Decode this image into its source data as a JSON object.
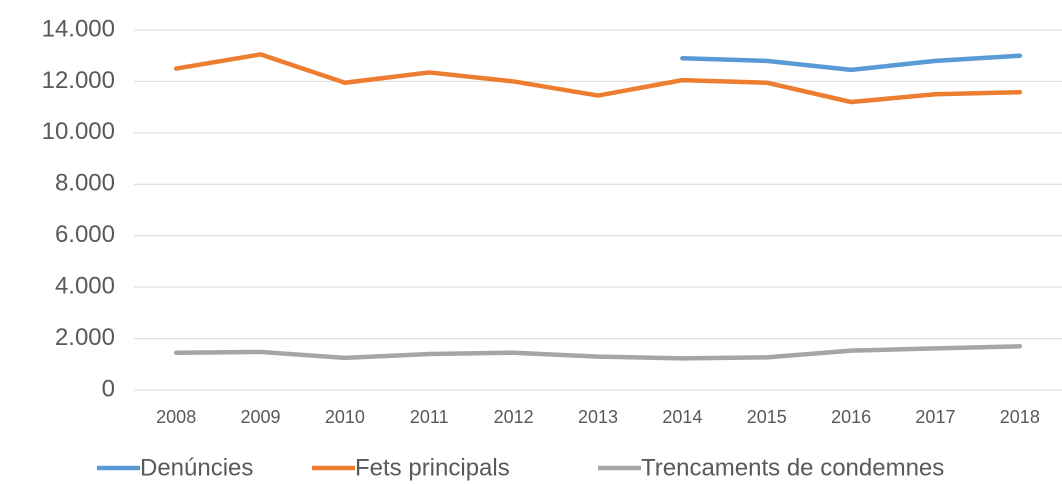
{
  "chart_data": {
    "type": "line",
    "categories": [
      "2008",
      "2009",
      "2010",
      "2011",
      "2012",
      "2013",
      "2014",
      "2015",
      "2016",
      "2017",
      "2018"
    ],
    "series": [
      {
        "name": "Denúncies",
        "color": "#5b9bd5",
        "values": [
          null,
          null,
          null,
          null,
          null,
          null,
          12900,
          12800,
          12450,
          12800,
          13000
        ]
      },
      {
        "name": "Fets principals",
        "color": "#ed7d31",
        "values": [
          12500,
          13050,
          11950,
          12350,
          12000,
          11450,
          12050,
          11950,
          11200,
          11500,
          11580
        ]
      },
      {
        "name": "Trencaments de condemnes",
        "color": "#a5a5a5",
        "values": [
          1450,
          1480,
          1250,
          1400,
          1450,
          1300,
          1230,
          1270,
          1530,
          1620,
          1700
        ]
      }
    ],
    "ylim": [
      0,
      14000
    ],
    "yticks": [
      0,
      {
        "value": 2000,
        "label": "2.000"
      },
      {
        "value": 4000,
        "label": "4.000"
      },
      {
        "value": 6000,
        "label": "6.000"
      },
      {
        "value": 8000,
        "label": "8.000"
      },
      {
        "value": 10000,
        "label": "10.000"
      },
      {
        "value": 12000,
        "label": "12.000"
      },
      {
        "value": 14000,
        "label": "14.000"
      }
    ],
    "grid": true,
    "legend": "bottom"
  }
}
